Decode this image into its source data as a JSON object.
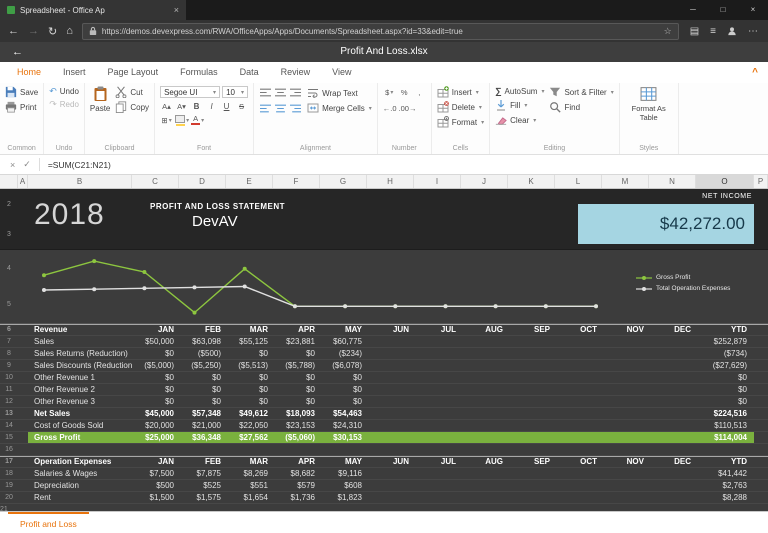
{
  "browser": {
    "tab_title": "Spreadsheet - Office Ap",
    "url": "https://demos.devexpress.com/RWA/OfficeApps/Apps/Documents/Spreadsheet.aspx?id=33&edit=true"
  },
  "app": {
    "title": "Profit And Loss.xlsx",
    "sheet_tab": "Profit and Loss",
    "formula_bar": {
      "formula": "=SUM(C21:N21)"
    }
  },
  "icons": {
    "dropdown": "▾",
    "undo": "↶",
    "redo": "↷",
    "autosum": "∑",
    "back": "←",
    "forward": "→",
    "refresh": "↻",
    "home": "⌂",
    "star": "☆",
    "reading": "▤",
    "hub": "≡",
    "more": "⋯",
    "minimize": "─",
    "maximize": "□",
    "close": "×",
    "tab_close": "×",
    "cancel": "×",
    "accept": "✓",
    "collapse": "^",
    "borders": "⊞",
    "grow_font": "A▴",
    "shrink_font": "A▾",
    "bold": "B",
    "italic": "I",
    "underline": "U",
    "strikethrough": "S",
    "accounting": "$",
    "percent": "%",
    "comma": ",",
    "increase_decimal": "←.0",
    "decrease_decimal": ".00→",
    "font_color": "A",
    "app_back": "←"
  },
  "colors": {
    "accent_orange": "#e8730c",
    "gross_profit_green": "#7ab13e",
    "net_income_cyan": "#a5d5e2"
  },
  "ribbon": {
    "tabs": [
      {
        "label": "Home",
        "active": true
      },
      {
        "label": "Insert"
      },
      {
        "label": "Page Layout"
      },
      {
        "label": "Formulas"
      },
      {
        "label": "Data"
      },
      {
        "label": "Review"
      },
      {
        "label": "View"
      }
    ],
    "groups": {
      "common": {
        "label": "Common",
        "save": "Save",
        "print": "Print"
      },
      "undo": {
        "label": "Undo",
        "undo": "Undo",
        "redo": "Redo"
      },
      "clipboard": {
        "label": "Clipboard",
        "paste": "Paste",
        "cut": "Cut",
        "copy": "Copy"
      },
      "font": {
        "label": "Font",
        "family": "Segoe UI",
        "size": "10"
      },
      "alignment": {
        "label": "Alignment",
        "wrap": "Wrap Text",
        "merge": "Merge Cells"
      },
      "number": {
        "label": "Number"
      },
      "cells": {
        "label": "Cells",
        "insert": "Insert",
        "delete": "Delete",
        "format": "Format"
      },
      "editing": {
        "label": "Editing",
        "autosum": "AutoSum",
        "fill": "Fill",
        "clear": "Clear",
        "sort": "Sort & Filter",
        "find": "Find"
      },
      "styles": {
        "label": "Styles",
        "format_as_table": "Format As Table"
      }
    }
  },
  "sheet": {
    "columns": [
      "A",
      "B",
      "C",
      "D",
      "E",
      "F",
      "G",
      "H",
      "I",
      "J",
      "K",
      "L",
      "M",
      "N",
      "O",
      "P"
    ],
    "selected_column": "O",
    "header_band": {
      "row_numbers": [
        "2",
        "3"
      ],
      "year": "2018",
      "statement": "PROFIT AND LOSS STATEMENT",
      "company": "DevAV",
      "net_income_label": "NET INCOME",
      "net_income_value": "$42,272.00"
    },
    "chart_band": {
      "row_numbers": [
        "4",
        "5"
      ]
    },
    "partial_row_number": "21",
    "rows": [
      {
        "num": "6",
        "type": "section",
        "label": "Revenue",
        "cells": [
          "JAN",
          "FEB",
          "MAR",
          "APR",
          "MAY",
          "JUN",
          "JUL",
          "AUG",
          "SEP",
          "OCT",
          "NOV",
          "DEC",
          "YTD"
        ]
      },
      {
        "num": "7",
        "type": "data",
        "label": "Sales",
        "cells": [
          "$50,000",
          "$63,098",
          "$55,125",
          "$23,881",
          "$60,775",
          "",
          "",
          "",
          "",
          "",
          "",
          "",
          "$252,879"
        ]
      },
      {
        "num": "8",
        "type": "data",
        "label": "Sales Returns (Reduction)",
        "cells": [
          "$0",
          "($500)",
          "$0",
          "$0",
          "($234)",
          "",
          "",
          "",
          "",
          "",
          "",
          "",
          "($734)"
        ]
      },
      {
        "num": "9",
        "type": "data",
        "label": "Sales Discounts (Reduction)",
        "cells": [
          "($5,000)",
          "($5,250)",
          "($5,513)",
          "($5,788)",
          "($6,078)",
          "",
          "",
          "",
          "",
          "",
          "",
          "",
          "($27,629)"
        ]
      },
      {
        "num": "10",
        "type": "data",
        "label": "Other Revenue 1",
        "cells": [
          "$0",
          "$0",
          "$0",
          "$0",
          "$0",
          "",
          "",
          "",
          "",
          "",
          "",
          "",
          "$0"
        ]
      },
      {
        "num": "11",
        "type": "data",
        "label": "Other Revenue 2",
        "cells": [
          "$0",
          "$0",
          "$0",
          "$0",
          "$0",
          "",
          "",
          "",
          "",
          "",
          "",
          "",
          "$0"
        ]
      },
      {
        "num": "12",
        "type": "data",
        "label": "Other Revenue 3",
        "cells": [
          "$0",
          "$0",
          "$0",
          "$0",
          "$0",
          "",
          "",
          "",
          "",
          "",
          "",
          "",
          "$0"
        ]
      },
      {
        "num": "13",
        "type": "bold",
        "label": "Net Sales",
        "cells": [
          "$45,000",
          "$57,348",
          "$49,612",
          "$18,093",
          "$54,463",
          "",
          "",
          "",
          "",
          "",
          "",
          "",
          "$224,516"
        ]
      },
      {
        "num": "14",
        "type": "data",
        "label": "Cost of Goods Sold",
        "cells": [
          "$20,000",
          "$21,000",
          "$22,050",
          "$23,153",
          "$24,310",
          "",
          "",
          "",
          "",
          "",
          "",
          "",
          "$110,513"
        ]
      },
      {
        "num": "15",
        "type": "green",
        "label": "Gross Profit",
        "cells": [
          "$25,000",
          "$36,348",
          "$27,562",
          "($5,060)",
          "$30,153",
          "",
          "",
          "",
          "",
          "",
          "",
          "",
          "$114,004"
        ]
      },
      {
        "num": "16",
        "type": "empty",
        "label": "",
        "cells": [
          "",
          "",
          "",
          "",
          "",
          "",
          "",
          "",
          "",
          "",
          "",
          "",
          ""
        ]
      },
      {
        "num": "17",
        "type": "section",
        "label": "Operation Expenses",
        "cells": [
          "JAN",
          "FEB",
          "MAR",
          "APR",
          "MAY",
          "JUN",
          "JUL",
          "AUG",
          "SEP",
          "OCT",
          "NOV",
          "DEC",
          "YTD"
        ]
      },
      {
        "num": "18",
        "type": "data",
        "label": "Salaries & Wages",
        "cells": [
          "$7,500",
          "$7,875",
          "$8,269",
          "$8,682",
          "$9,116",
          "",
          "",
          "",
          "",
          "",
          "",
          "",
          "$41,442"
        ]
      },
      {
        "num": "19",
        "type": "data",
        "label": "Depreciation",
        "cells": [
          "$500",
          "$525",
          "$551",
          "$579",
          "$608",
          "",
          "",
          "",
          "",
          "",
          "",
          "",
          "$2,763"
        ]
      },
      {
        "num": "20",
        "type": "data",
        "label": "Rent",
        "cells": [
          "$1,500",
          "$1,575",
          "$1,654",
          "$1,736",
          "$1,823",
          "",
          "",
          "",
          "",
          "",
          "",
          "",
          "$8,288"
        ]
      }
    ]
  },
  "chart_data": {
    "type": "line",
    "x": [
      "JAN",
      "FEB",
      "MAR",
      "APR",
      "MAY",
      "JUN",
      "JUL",
      "AUG",
      "SEP",
      "OCT",
      "NOV",
      "DEC"
    ],
    "series": [
      {
        "name": "Gross Profit",
        "color": "#8dc63f",
        "values": [
          25000,
          36348,
          27562,
          -5060,
          30153,
          0,
          0,
          0,
          0,
          0,
          0,
          0
        ]
      },
      {
        "name": "Total Operation Expenses",
        "color": "#e0e0e0",
        "values": [
          13100,
          13750,
          14440,
          15160,
          15920,
          0,
          0,
          0,
          0,
          0,
          0,
          0
        ]
      }
    ],
    "ylim": [
      -7000,
      38000
    ],
    "grid": false,
    "legend_position": "right"
  }
}
